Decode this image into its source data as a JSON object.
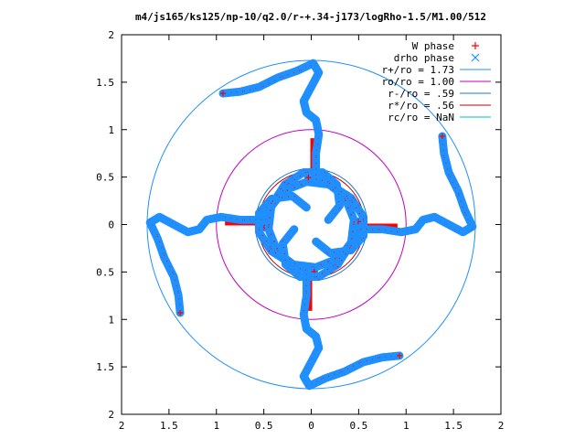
{
  "chart_data": {
    "type": "scatter",
    "title": "m4/js165/ks125/np-10/q2.0/r-+.34-j173/logRho-1.5/M1.00/512",
    "xlabel": "",
    "ylabel": "",
    "xlim": [
      -2,
      2
    ],
    "ylim": [
      -2,
      2
    ],
    "grid": false,
    "legend_position": "top-right",
    "x_ticks": [
      -2,
      -1.5,
      -1,
      -0.5,
      0,
      0.5,
      1,
      1.5,
      2
    ],
    "y_ticks": [
      -2,
      -1.5,
      -1,
      -0.5,
      0,
      0.5,
      1,
      1.5,
      2
    ],
    "x_tick_labels": [
      "2",
      "1.5",
      "1",
      "0.5",
      "0",
      "0.5",
      "1",
      "1.5",
      "2"
    ],
    "y_tick_labels": [
      "2",
      "1.5",
      "1",
      "0.5",
      "0",
      "0.5",
      "1",
      "1.5",
      "2"
    ],
    "series": [
      {
        "name": "W phase",
        "marker": "+",
        "color": "#ff0000"
      },
      {
        "name": "drho phase",
        "marker": "x",
        "color": "#1e90ff"
      },
      {
        "name": "r+/ro = 1.73",
        "type": "circle",
        "radius": 1.73,
        "color": "#1e90ff"
      },
      {
        "name": "ro/ro = 1.00",
        "type": "circle",
        "radius": 1.0,
        "color": "#c000c0"
      },
      {
        "name": "r-/ro = .59",
        "type": "circle",
        "radius": 0.59,
        "color": "#1e78c8"
      },
      {
        "name": "r*/ro = .56",
        "type": "circle",
        "radius": 0.56,
        "color": "#c00000"
      },
      {
        "name": "rc/ro = NaN",
        "type": "circle",
        "radius": null,
        "color": "#00c0c0"
      }
    ],
    "arms": [
      [
        [
          0.05,
          -0.18
        ],
        [
          0.2,
          -0.3
        ],
        [
          0.42,
          -0.27
        ],
        [
          0.55,
          -0.12
        ],
        [
          0.55,
          0.08
        ],
        [
          0.42,
          0.28
        ],
        [
          0.2,
          0.42
        ],
        [
          -0.05,
          0.45
        ],
        [
          -0.3,
          0.35
        ],
        [
          -0.45,
          0.15
        ],
        [
          -0.5,
          -0.05
        ]
      ],
      [
        [
          -0.05,
          0.18
        ],
        [
          -0.2,
          0.3
        ],
        [
          -0.42,
          0.27
        ],
        [
          -0.55,
          0.12
        ],
        [
          -0.55,
          -0.08
        ],
        [
          -0.42,
          -0.28
        ],
        [
          -0.2,
          -0.42
        ],
        [
          0.05,
          -0.45
        ],
        [
          0.3,
          -0.35
        ],
        [
          0.45,
          -0.15
        ],
        [
          0.5,
          0.05
        ]
      ],
      [
        [
          0.18,
          0.05
        ],
        [
          0.3,
          0.2
        ],
        [
          0.27,
          0.42
        ],
        [
          0.12,
          0.55
        ],
        [
          -0.08,
          0.55
        ],
        [
          -0.28,
          0.42
        ],
        [
          -0.42,
          0.2
        ],
        [
          -0.45,
          -0.05
        ],
        [
          -0.35,
          -0.3
        ],
        [
          -0.15,
          -0.45
        ],
        [
          0.05,
          -0.5
        ]
      ],
      [
        [
          -0.18,
          -0.05
        ],
        [
          -0.3,
          -0.2
        ],
        [
          -0.27,
          -0.42
        ],
        [
          -0.12,
          -0.55
        ],
        [
          0.08,
          -0.55
        ],
        [
          0.28,
          -0.42
        ],
        [
          0.42,
          -0.2
        ],
        [
          0.45,
          0.05
        ],
        [
          0.35,
          0.3
        ],
        [
          0.15,
          0.45
        ],
        [
          -0.05,
          0.5
        ]
      ],
      [
        [
          0.05,
          0.55
        ],
        [
          0.05,
          0.75
        ],
        [
          0.08,
          0.95
        ],
        [
          0.05,
          1.1
        ],
        [
          -0.05,
          1.18
        ],
        [
          -0.08,
          1.3
        ],
        [
          0.0,
          1.45
        ],
        [
          0.08,
          1.6
        ],
        [
          0.02,
          1.7
        ],
        [
          -0.15,
          1.62
        ],
        [
          -0.35,
          1.55
        ],
        [
          -0.55,
          1.45
        ],
        [
          -0.75,
          1.4
        ],
        [
          -0.95,
          1.38
        ]
      ],
      [
        [
          -0.55,
          0.05
        ],
        [
          -0.75,
          0.05
        ],
        [
          -0.95,
          0.08
        ],
        [
          -1.1,
          0.05
        ],
        [
          -1.18,
          -0.05
        ],
        [
          -1.3,
          -0.08
        ],
        [
          -1.45,
          0.0
        ],
        [
          -1.6,
          0.08
        ],
        [
          -1.7,
          0.02
        ],
        [
          -1.62,
          -0.15
        ],
        [
          -1.55,
          -0.35
        ],
        [
          -1.45,
          -0.55
        ],
        [
          -1.4,
          -0.75
        ],
        [
          -1.38,
          -0.95
        ]
      ],
      [
        [
          -0.05,
          -0.55
        ],
        [
          -0.05,
          -0.75
        ],
        [
          -0.08,
          -0.95
        ],
        [
          -0.05,
          -1.1
        ],
        [
          0.05,
          -1.18
        ],
        [
          0.08,
          -1.3
        ],
        [
          0.0,
          -1.45
        ],
        [
          -0.08,
          -1.6
        ],
        [
          -0.02,
          -1.7
        ],
        [
          0.15,
          -1.62
        ],
        [
          0.35,
          -1.55
        ],
        [
          0.55,
          -1.45
        ],
        [
          0.75,
          -1.4
        ],
        [
          0.95,
          -1.38
        ]
      ],
      [
        [
          0.55,
          -0.05
        ],
        [
          0.75,
          -0.05
        ],
        [
          0.95,
          -0.08
        ],
        [
          1.1,
          -0.05
        ],
        [
          1.18,
          0.05
        ],
        [
          1.3,
          0.08
        ],
        [
          1.45,
          0.0
        ],
        [
          1.6,
          -0.08
        ],
        [
          1.7,
          -0.02
        ],
        [
          1.62,
          0.15
        ],
        [
          1.55,
          0.35
        ],
        [
          1.45,
          0.55
        ],
        [
          1.4,
          0.75
        ],
        [
          1.38,
          0.95
        ]
      ]
    ],
    "red_bands": [
      [
        [
          0.0,
          0.6
        ],
        [
          0.08,
          0.9
        ]
      ],
      [
        [
          -0.6,
          0.0
        ],
        [
          -0.9,
          0.08
        ]
      ],
      [
        [
          0.0,
          -0.6
        ],
        [
          -0.08,
          -0.9
        ]
      ],
      [
        [
          0.6,
          0.0
        ],
        [
          0.9,
          -0.08
        ]
      ]
    ]
  }
}
